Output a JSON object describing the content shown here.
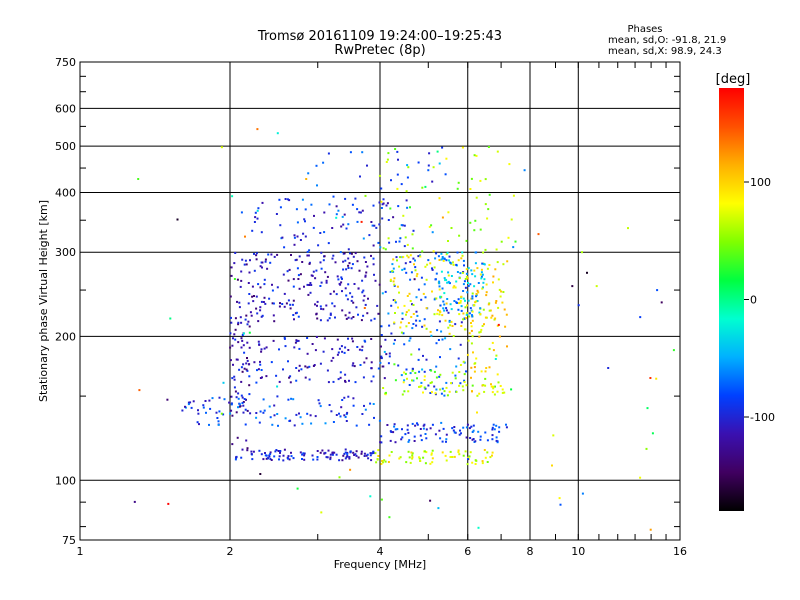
{
  "chart_data": {
    "type": "scatter",
    "title": "Tromsø 20161109 19:24:00–19:25:43",
    "subtitle": "RwPretec (8p)",
    "stats": {
      "heading": "Phases",
      "line1": "mean, sd,O: -91.8, 21.9",
      "line2": "mean, sd,X:  98.9, 24.3"
    },
    "xlabel": "Frequency [MHz]",
    "ylabel": "Stationary phase Virtual Height [km]",
    "x_scale": "log",
    "y_scale": "log",
    "xlim": [
      1,
      16
    ],
    "ylim": [
      75,
      750
    ],
    "grid": true,
    "x_ticks": [
      1,
      2,
      4,
      6,
      8,
      10,
      16
    ],
    "x_tick_labels": [
      "1",
      "2",
      "4",
      "6",
      "8",
      "10",
      "16"
    ],
    "y_ticks": [
      75,
      100,
      200,
      300,
      400,
      500,
      600,
      750
    ],
    "y_tick_labels": [
      "75",
      "100",
      "200",
      "300",
      "400",
      "500",
      "600",
      "750"
    ],
    "colorbar": {
      "label": "[deg]",
      "range": [
        -180,
        180
      ],
      "ticks": [
        100,
        0,
        -100
      ],
      "tick_labels": [
        "100",
        "0",
        "-100"
      ],
      "colors": [
        "#000000",
        "#400060",
        "#3a10b0",
        "#0040ff",
        "#00b0ff",
        "#00ffd0",
        "#00ff40",
        "#80ff00",
        "#ffff00",
        "#ffb000",
        "#ff5000",
        "#ff0000"
      ]
    },
    "clusters": [
      {
        "f": [
          2.05,
          3.9
        ],
        "h": [
          110,
          116
        ],
        "phase": -105,
        "n": 110
      },
      {
        "f": [
          3.9,
          6.8
        ],
        "h": [
          108,
          116
        ],
        "phase": 75,
        "n": 70
      },
      {
        "f": [
          4.0,
          7.2
        ],
        "h": [
          120,
          132
        ],
        "phase": -90,
        "n": 90
      },
      {
        "f": [
          2.0,
          2.2
        ],
        "h": [
          115,
          300
        ],
        "phase": -115,
        "n": 90
      },
      {
        "f": [
          1.6,
          4.0
        ],
        "h": [
          130,
          150
        ],
        "phase": -85,
        "n": 100
      },
      {
        "f": [
          2.1,
          4.2
        ],
        "h": [
          160,
          200
        ],
        "phase": -105,
        "n": 120
      },
      {
        "f": [
          2.2,
          4.0
        ],
        "h": [
          215,
          300
        ],
        "phase": -110,
        "n": 200
      },
      {
        "f": [
          2.1,
          4.5
        ],
        "h": [
          300,
          390
        ],
        "phase": -95,
        "n": 70
      },
      {
        "f": [
          4.0,
          6.0
        ],
        "h": [
          150,
          300
        ],
        "phase": -75,
        "n": 150
      },
      {
        "f": [
          4.2,
          6.8
        ],
        "h": [
          200,
          300
        ],
        "phase": 80,
        "n": 120
      },
      {
        "f": [
          5.2,
          6.5
        ],
        "h": [
          220,
          300
        ],
        "phase": -50,
        "n": 80
      },
      {
        "f": [
          4.0,
          7.0
        ],
        "h": [
          150,
          170
        ],
        "phase": 60,
        "n": 60
      },
      {
        "f": [
          4.0,
          7.5
        ],
        "h": [
          300,
          500
        ],
        "phase": 60,
        "n": 60
      },
      {
        "f": [
          5.8,
          7.2
        ],
        "h": [
          150,
          300
        ],
        "phase": 90,
        "n": 90
      },
      {
        "f": [
          2.8,
          5.5
        ],
        "h": [
          300,
          500
        ],
        "phase": -80,
        "n": 50
      },
      {
        "f": [
          1.2,
          16
        ],
        "h": [
          78,
          560
        ],
        "phase": 0,
        "n": 80
      }
    ]
  }
}
